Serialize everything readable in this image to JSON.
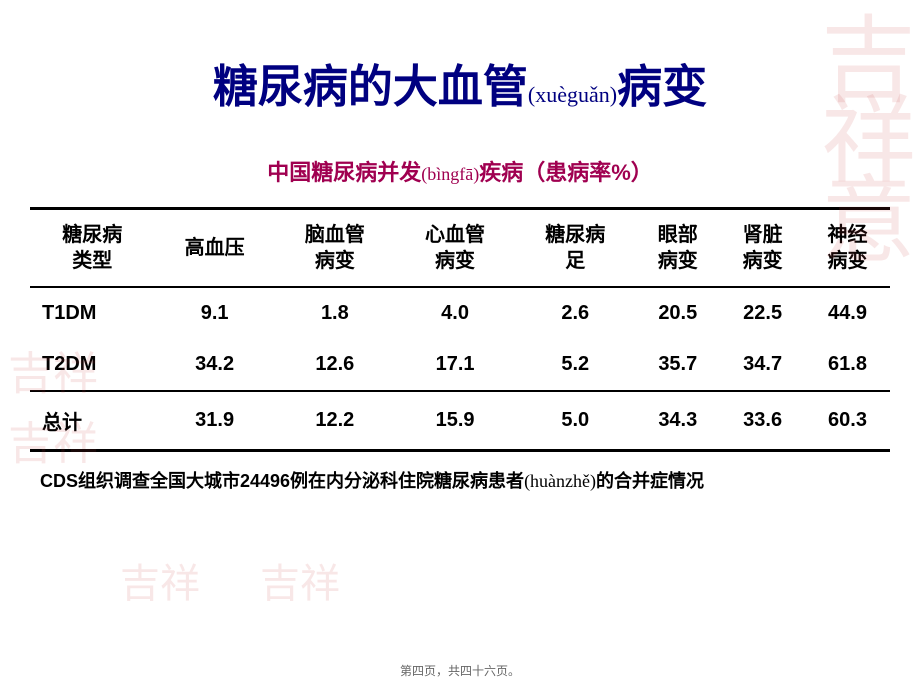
{
  "title": {
    "prefix": "糖尿病的大血管",
    "pinyin": "(xuèguǎn)",
    "suffix": "病变"
  },
  "subtitle": {
    "prefix": "中国糖尿病并发",
    "pinyin": "(bìngfā)",
    "suffix": "疾病（患病率%）"
  },
  "table": {
    "columns": [
      "糖尿病\n类型",
      "高血压",
      "脑血管\n病变",
      "心血管\n病变",
      "糖尿病\n足",
      "眼部\n病变",
      "肾脏\n病变",
      "神经\n病变"
    ],
    "rows": [
      [
        "T1DM",
        "9.1",
        "1.8",
        "4.0",
        "2.6",
        "20.5",
        "22.5",
        "44.9"
      ],
      [
        "T2DM",
        "34.2",
        "12.6",
        "17.1",
        "5.2",
        "35.7",
        "34.7",
        "61.8"
      ],
      [
        "总计",
        "31.9",
        "12.2",
        "15.9",
        "5.0",
        "34.3",
        "33.6",
        "60.3"
      ]
    ]
  },
  "footnote": {
    "prefix": "CDS组织调查全国大城市24496例在内分泌科住院糖尿病患者",
    "pinyin": "(huànzhě)",
    "suffix": "的合并症情况"
  },
  "pageIndicator": "第四页，共四十六页。",
  "seals": {
    "tr": "吉祥意",
    "left": "吉祥"
  }
}
